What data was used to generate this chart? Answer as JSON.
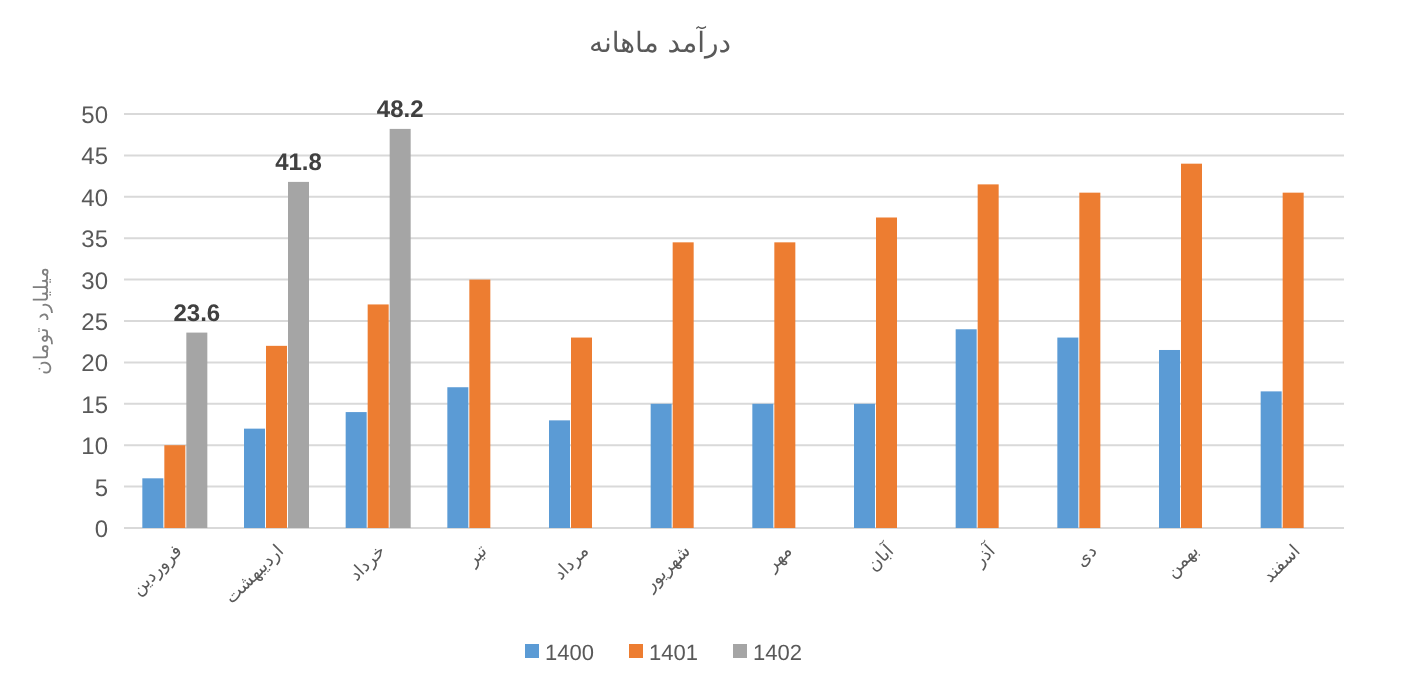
{
  "chart_data": {
    "type": "bar",
    "title": "درآمد ماهانه",
    "ylabel": "میلیارد تومان",
    "categories": [
      "فروردین",
      "اردیبهشت",
      "خرداد",
      "تیر",
      "مرداد",
      "شهریور",
      "مهر",
      "آبان",
      "آذر",
      "دی",
      "بهمن",
      "اسفند"
    ],
    "series": [
      {
        "name": "1400",
        "color": "#5b9bd5",
        "values": [
          6,
          12,
          14,
          17,
          13,
          15,
          15,
          15,
          24,
          23,
          21.5,
          16.5
        ]
      },
      {
        "name": "1401",
        "color": "#ed7d31",
        "values": [
          10,
          22,
          27,
          30,
          23,
          34.5,
          34.5,
          37.5,
          41.5,
          40.5,
          44,
          40.5
        ]
      },
      {
        "name": "1402",
        "color": "#a5a5a5",
        "values": [
          23.6,
          41.8,
          48.2,
          null,
          null,
          null,
          null,
          null,
          null,
          null,
          null,
          null
        ],
        "value_labels": [
          "23.6",
          "41.8",
          "48.2",
          null,
          null,
          null,
          null,
          null,
          null,
          null,
          null,
          null
        ]
      }
    ],
    "ylim": [
      0,
      50
    ],
    "yticks": [
      0,
      5,
      10,
      15,
      20,
      25,
      30,
      35,
      40,
      45,
      50
    ],
    "grid": "y",
    "legend": "bottom"
  }
}
